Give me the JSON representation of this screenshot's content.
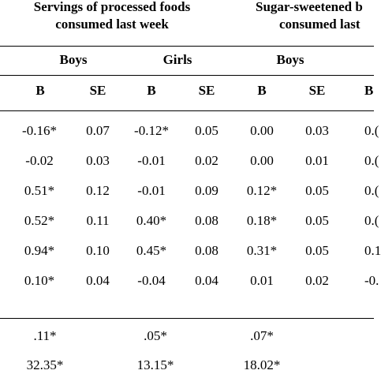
{
  "groups": [
    {
      "line1": "Servings of processed foods",
      "line2": "consumed last week"
    },
    {
      "line1": "Sugar-sweetened b",
      "line2": "consumed last"
    }
  ],
  "subgroups": [
    "Boys",
    "Girls",
    "Boys"
  ],
  "columns": [
    "B",
    "SE",
    "B",
    "SE",
    "B",
    "SE",
    "B"
  ],
  "rows": [
    [
      "-0.16*",
      "0.07",
      "-0.12*",
      "0.05",
      "0.00",
      "0.03",
      "0.("
    ],
    [
      "-0.02",
      "0.03",
      "-0.01",
      "0.02",
      "0.00",
      "0.01",
      "0.("
    ],
    [
      "0.51*",
      "0.12",
      "-0.01",
      "0.09",
      "0.12*",
      "0.05",
      "0.("
    ],
    [
      "0.52*",
      "0.11",
      "0.40*",
      "0.08",
      "0.18*",
      "0.05",
      "0.("
    ],
    [
      "0.94*",
      "0.10",
      "0.45*",
      "0.08",
      "0.31*",
      "0.05",
      "0.1"
    ],
    [
      "0.10*",
      "0.04",
      "-0.04",
      "0.04",
      "0.01",
      "0.02",
      "-0."
    ]
  ],
  "summary": [
    [
      ".11*",
      ".05*",
      ".07*"
    ],
    [
      "32.35*",
      "13.15*",
      "18.02*"
    ]
  ]
}
